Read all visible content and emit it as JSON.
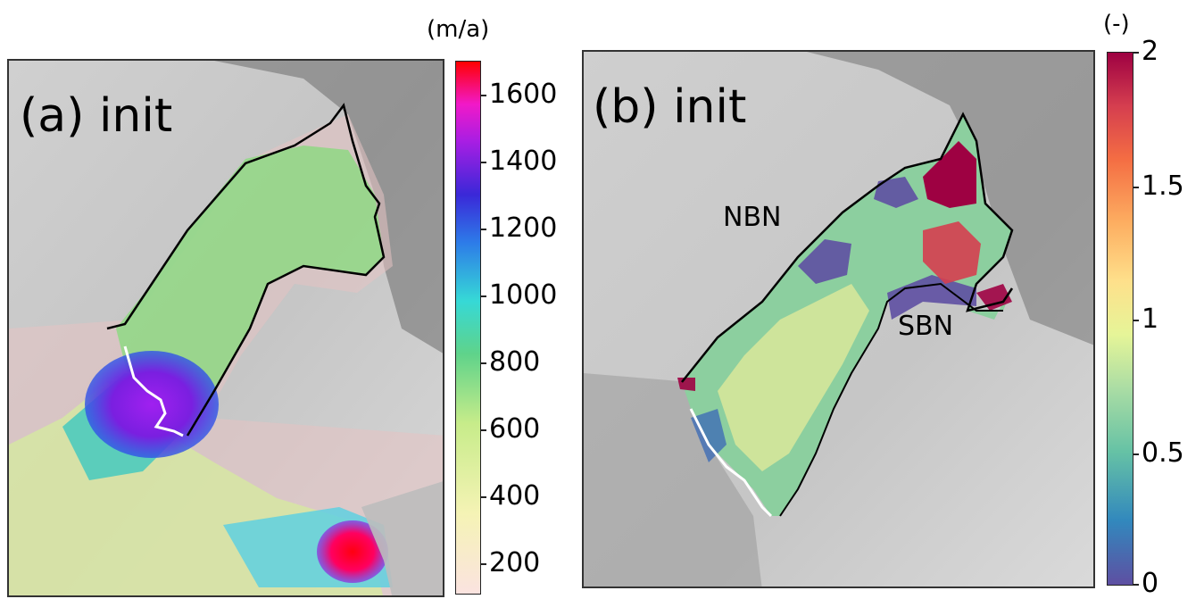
{
  "panels": [
    {
      "label": "(a) init"
    },
    {
      "label": "(b) init",
      "regions": [
        "NBN",
        "SBN"
      ]
    }
  ],
  "colorbars": {
    "a": {
      "unit": "(m/a)",
      "ticks": [
        "1600",
        "1400",
        "1200",
        "1000",
        "800",
        "600",
        "400",
        "200"
      ]
    },
    "b": {
      "unit": "(-)",
      "ticks": [
        "2",
        "1.5",
        "1",
        "0.5",
        "0"
      ]
    }
  },
  "colors": {
    "border": "#333333",
    "grounding_line": "#ffffff",
    "calving_front": "#000000"
  }
}
